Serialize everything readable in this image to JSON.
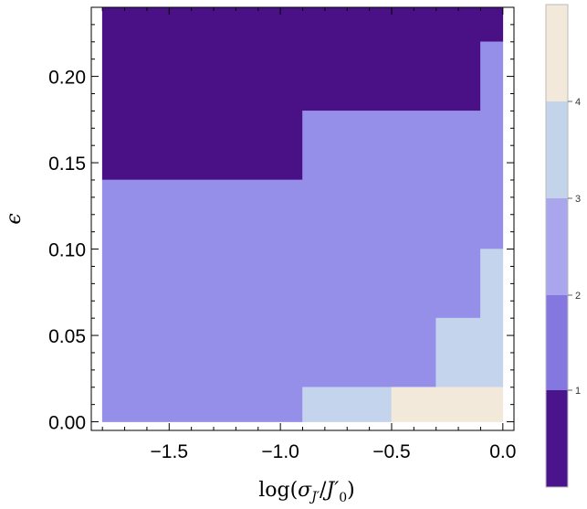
{
  "chart_data": {
    "type": "heatmap",
    "title": "",
    "xlabel": "log(σ_J′/J′_0)",
    "ylabel": "ϵ",
    "xlim": [
      -1.85,
      0.05
    ],
    "ylim": [
      -0.005,
      0.24
    ],
    "x_ticks": [
      "−1.5",
      "−1.0",
      "−0.5",
      "0.0"
    ],
    "x_tick_values": [
      -1.5,
      -1.0,
      -0.5,
      0.0
    ],
    "y_ticks": [
      "0.00",
      "0.05",
      "0.10",
      "0.15",
      "0.20"
    ],
    "y_tick_values": [
      0.0,
      0.05,
      0.1,
      0.15,
      0.2
    ],
    "colorbar": {
      "levels": [
        {
          "value": 0,
          "color": "#4a148c"
        },
        {
          "value": 1,
          "color": "#8577e0"
        },
        {
          "value": 2,
          "color": "#aaa6ee"
        },
        {
          "value": 3,
          "color": "#c3d4ea"
        },
        {
          "value": 4,
          "color": "#f2e9da"
        }
      ],
      "tick_labels": [
        "1",
        "2",
        "3",
        "4"
      ]
    },
    "regions": [
      {
        "value": 0,
        "color": "#4a1187",
        "x": [
          -1.8,
          -0.9
        ],
        "y": [
          0.14,
          0.24
        ]
      },
      {
        "value": 0,
        "color": "#4a1187",
        "x": [
          -0.9,
          -0.1
        ],
        "y": [
          0.18,
          0.24
        ]
      },
      {
        "value": 0,
        "color": "#4a1187",
        "x": [
          -0.1,
          0.0
        ],
        "y": [
          0.22,
          0.24
        ]
      },
      {
        "value": 2,
        "color": "#968fe9",
        "x": [
          -1.8,
          -0.9
        ],
        "y": [
          0.0,
          0.14
        ]
      },
      {
        "value": 2,
        "color": "#968fe9",
        "x": [
          -0.9,
          -0.5
        ],
        "y": [
          0.02,
          0.18
        ]
      },
      {
        "value": 2,
        "color": "#968fe9",
        "x": [
          -0.5,
          -0.3
        ],
        "y": [
          0.02,
          0.18
        ]
      },
      {
        "value": 2,
        "color": "#968fe9",
        "x": [
          -0.3,
          -0.1
        ],
        "y": [
          0.06,
          0.18
        ]
      },
      {
        "value": 2,
        "color": "#968fe9",
        "x": [
          -0.1,
          0.0
        ],
        "y": [
          0.1,
          0.22
        ]
      },
      {
        "value": 3,
        "color": "#c3d4ec",
        "x": [
          -0.9,
          -0.5
        ],
        "y": [
          0.0,
          0.02
        ]
      },
      {
        "value": 3,
        "color": "#c3d4ec",
        "x": [
          -0.3,
          -0.1
        ],
        "y": [
          0.02,
          0.06
        ]
      },
      {
        "value": 3,
        "color": "#c3d4ec",
        "x": [
          -0.1,
          0.0
        ],
        "y": [
          0.02,
          0.1
        ]
      },
      {
        "value": 4,
        "color": "#f2e9da",
        "x": [
          -0.5,
          0.0
        ],
        "y": [
          0.0,
          0.02
        ]
      }
    ]
  }
}
